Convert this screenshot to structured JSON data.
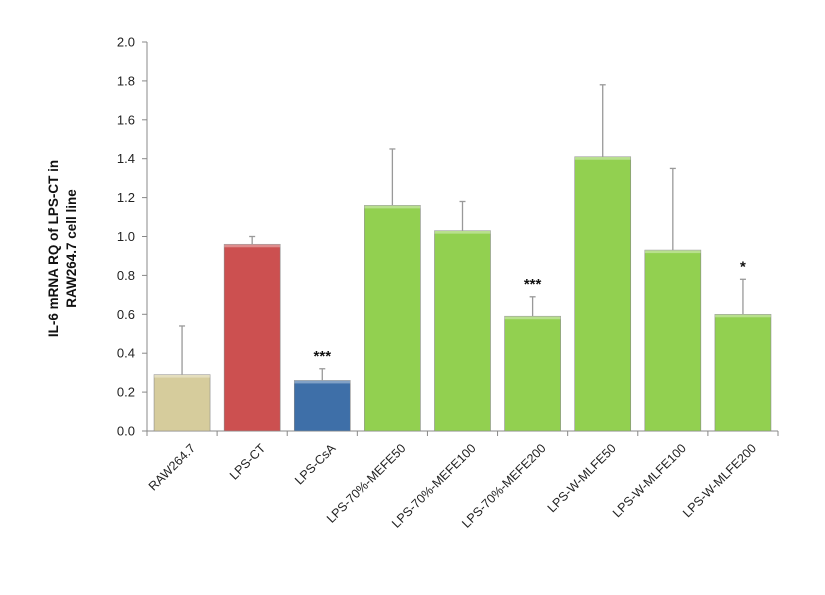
{
  "chart_data": {
    "type": "bar",
    "title": "",
    "xlabel": "",
    "ylabel_lines": [
      "IL-6 mRNA RQ of LPS-CT in",
      "RAW264.7 cell line"
    ],
    "ylim": [
      0,
      2.0
    ],
    "yticks": [
      "0.0",
      "0.2",
      "0.4",
      "0.6",
      "0.8",
      "1.0",
      "1.2",
      "1.4",
      "1.6",
      "1.8",
      "2.0"
    ],
    "ytick_values": [
      0,
      0.2,
      0.4,
      0.6,
      0.8,
      1.0,
      1.2,
      1.4,
      1.6,
      1.8,
      2.0
    ],
    "categories": [
      "RAW264.7",
      "LPS-CT",
      "LPS-CsA",
      "LPS-70%-MEFE50",
      "LPS-70%-MEFE100",
      "LPS-70%-MEFE200",
      "LPS-W-MLFE50",
      "LPS-W-MLFE100",
      "LPS-W-MLFE200"
    ],
    "values": [
      0.29,
      0.96,
      0.26,
      1.16,
      1.03,
      0.59,
      1.41,
      0.93,
      0.6
    ],
    "errors": [
      0.25,
      0.04,
      0.06,
      0.29,
      0.15,
      0.1,
      0.37,
      0.42,
      0.18
    ],
    "significance": [
      "",
      "",
      "***",
      "",
      "",
      "***",
      "",
      "",
      "*"
    ],
    "colors": [
      "#d6cc9c",
      "#cc5050",
      "#3e6fa8",
      "#92d050",
      "#92d050",
      "#92d050",
      "#92d050",
      "#92d050",
      "#92d050"
    ],
    "grid": false,
    "legend": "none"
  }
}
